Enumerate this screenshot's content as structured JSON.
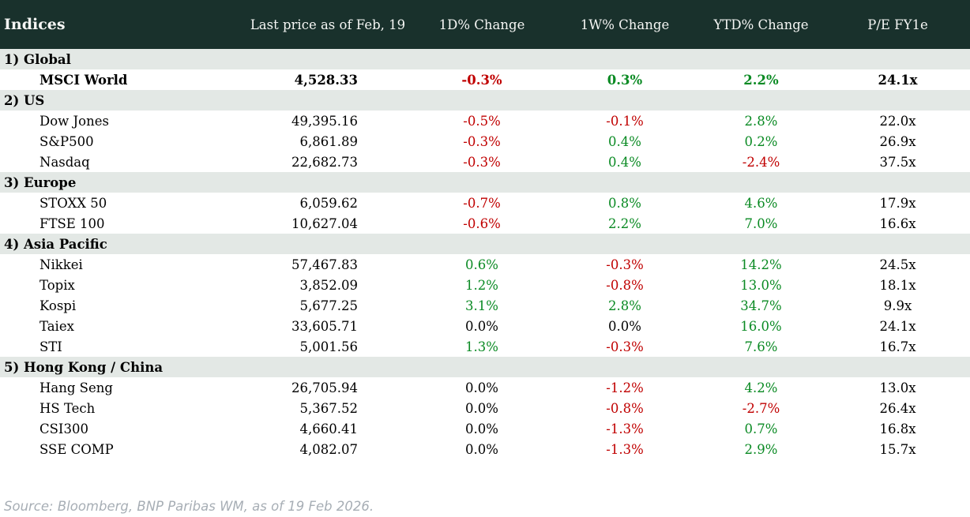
{
  "table": {
    "title": "Indices",
    "columns": [
      "Last price as of Feb, 19",
      "1D% Change",
      "1W% Change",
      "YTD% Change",
      "P/E FY1e"
    ],
    "sections": [
      {
        "label": "1) Global",
        "rows": [
          {
            "name": "MSCI World",
            "bold": true,
            "last_price": "4,528.33",
            "chg_1d": "-0.3%",
            "chg_1w": "0.3%",
            "chg_ytd": "2.2%",
            "pe": "24.1x"
          }
        ]
      },
      {
        "label": "2) US",
        "rows": [
          {
            "name": "Dow Jones",
            "bold": false,
            "last_price": "49,395.16",
            "chg_1d": "-0.5%",
            "chg_1w": "-0.1%",
            "chg_ytd": "2.8%",
            "pe": "22.0x"
          },
          {
            "name": "S&P500",
            "bold": false,
            "last_price": "6,861.89",
            "chg_1d": "-0.3%",
            "chg_1w": "0.4%",
            "chg_ytd": "0.2%",
            "pe": "26.9x"
          },
          {
            "name": "Nasdaq",
            "bold": false,
            "last_price": "22,682.73",
            "chg_1d": "-0.3%",
            "chg_1w": "0.4%",
            "chg_ytd": "-2.4%",
            "pe": "37.5x"
          }
        ]
      },
      {
        "label": "3) Europe",
        "rows": [
          {
            "name": "STOXX 50",
            "bold": false,
            "last_price": "6,059.62",
            "chg_1d": "-0.7%",
            "chg_1w": "0.8%",
            "chg_ytd": "4.6%",
            "pe": "17.9x"
          },
          {
            "name": "FTSE 100",
            "bold": false,
            "last_price": "10,627.04",
            "chg_1d": "-0.6%",
            "chg_1w": "2.2%",
            "chg_ytd": "7.0%",
            "pe": "16.6x"
          }
        ]
      },
      {
        "label": "4) Asia Pacific",
        "rows": [
          {
            "name": "Nikkei",
            "bold": false,
            "last_price": "57,467.83",
            "chg_1d": "0.6%",
            "chg_1w": "-0.3%",
            "chg_ytd": "14.2%",
            "pe": "24.5x"
          },
          {
            "name": "Topix",
            "bold": false,
            "last_price": "3,852.09",
            "chg_1d": "1.2%",
            "chg_1w": "-0.8%",
            "chg_ytd": "13.0%",
            "pe": "18.1x"
          },
          {
            "name": "Kospi",
            "bold": false,
            "last_price": "5,677.25",
            "chg_1d": "3.1%",
            "chg_1w": "2.8%",
            "chg_ytd": "34.7%",
            "pe": "9.9x"
          },
          {
            "name": "Taiex",
            "bold": false,
            "last_price": "33,605.71",
            "chg_1d": "0.0%",
            "chg_1w": "0.0%",
            "chg_ytd": "16.0%",
            "pe": "24.1x"
          },
          {
            "name": "STI",
            "bold": false,
            "last_price": "5,001.56",
            "chg_1d": "1.3%",
            "chg_1w": "-0.3%",
            "chg_ytd": "7.6%",
            "pe": "16.7x"
          }
        ]
      },
      {
        "label": "5) Hong Kong / China",
        "rows": [
          {
            "name": "Hang Seng",
            "bold": false,
            "last_price": "26,705.94",
            "chg_1d": "0.0%",
            "chg_1w": "-1.2%",
            "chg_ytd": "4.2%",
            "pe": "13.0x"
          },
          {
            "name": "HS Tech",
            "bold": false,
            "last_price": "5,367.52",
            "chg_1d": "0.0%",
            "chg_1w": "-0.8%",
            "chg_ytd": "-2.7%",
            "pe": "26.4x"
          },
          {
            "name": "CSI300",
            "bold": false,
            "last_price": "4,660.41",
            "chg_1d": "0.0%",
            "chg_1w": "-1.3%",
            "chg_ytd": "0.7%",
            "pe": "16.8x"
          },
          {
            "name": "SSE COMP",
            "bold": false,
            "last_price": "4,082.07",
            "chg_1d": "0.0%",
            "chg_1w": "-1.3%",
            "chg_ytd": "2.9%",
            "pe": "15.7x"
          }
        ]
      }
    ]
  },
  "footer": {
    "source": "Source: Bloomberg, BNP Paribas WM, as of 19 Feb 2026."
  },
  "colors": {
    "header_bg": "#19312c",
    "header_text": "#f5f6f4",
    "section_row_bg": "#e3e8e5",
    "positive": "#0a8a23",
    "negative": "#c00000",
    "neutral": "#000000",
    "source_text": "#a7aeb5"
  }
}
